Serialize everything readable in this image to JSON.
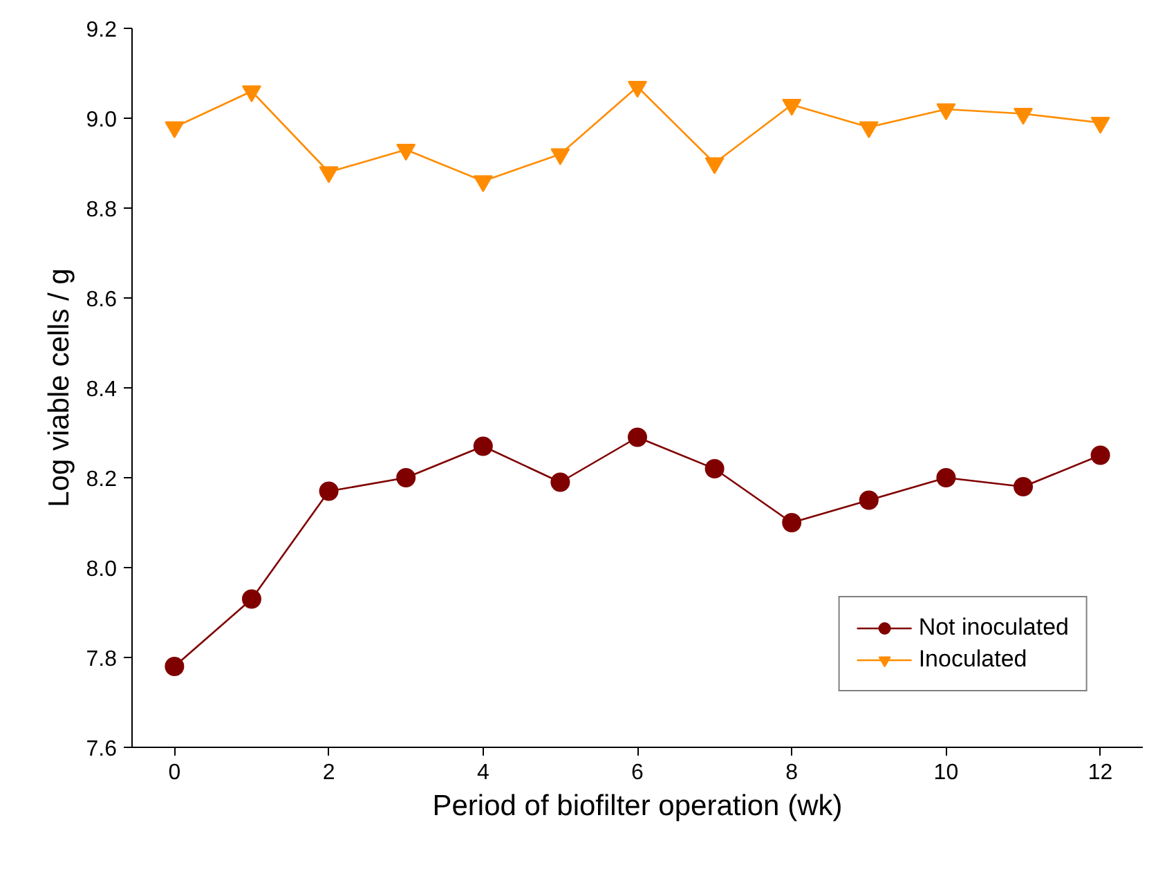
{
  "chart_data": {
    "type": "line",
    "xlabel": "Period of biofilter operation (wk)",
    "ylabel": "Log viable cells / g",
    "x": [
      0,
      1,
      2,
      3,
      4,
      5,
      6,
      7,
      8,
      9,
      10,
      11,
      12
    ],
    "series": [
      {
        "name": "Not inoculated",
        "color": "#800000",
        "marker": "circle",
        "values": [
          7.78,
          7.93,
          8.17,
          8.2,
          8.27,
          8.19,
          8.29,
          8.22,
          8.1,
          8.15,
          8.2,
          8.18,
          8.25
        ]
      },
      {
        "name": "Inoculated",
        "color": "#ff8c00",
        "marker": "triangle",
        "values": [
          8.98,
          9.06,
          8.88,
          8.93,
          8.86,
          8.92,
          9.07,
          8.9,
          9.03,
          8.98,
          9.02,
          9.01,
          8.99
        ]
      }
    ],
    "xlim": [
      -0.55,
      12.55
    ],
    "ylim": [
      7.6,
      9.2
    ],
    "xticks": [
      0,
      2,
      4,
      6,
      8,
      10,
      12
    ],
    "yticks": [
      {
        "value": 7.6,
        "label": "7.6"
      },
      {
        "value": 7.8,
        "label": "7.8"
      },
      {
        "value": 8.0,
        "label": "8.0"
      },
      {
        "value": 8.2,
        "label": "8.2"
      },
      {
        "value": 8.4,
        "label": "8.4"
      },
      {
        "value": 8.6,
        "label": "8.6"
      },
      {
        "value": 8.8,
        "label": "8.8"
      },
      {
        "value": 9.0,
        "label": "9.0"
      },
      {
        "value": 9.2,
        "label": "9.2"
      }
    ],
    "legend": "bottom right",
    "grid": false,
    "line_style": "solid"
  }
}
